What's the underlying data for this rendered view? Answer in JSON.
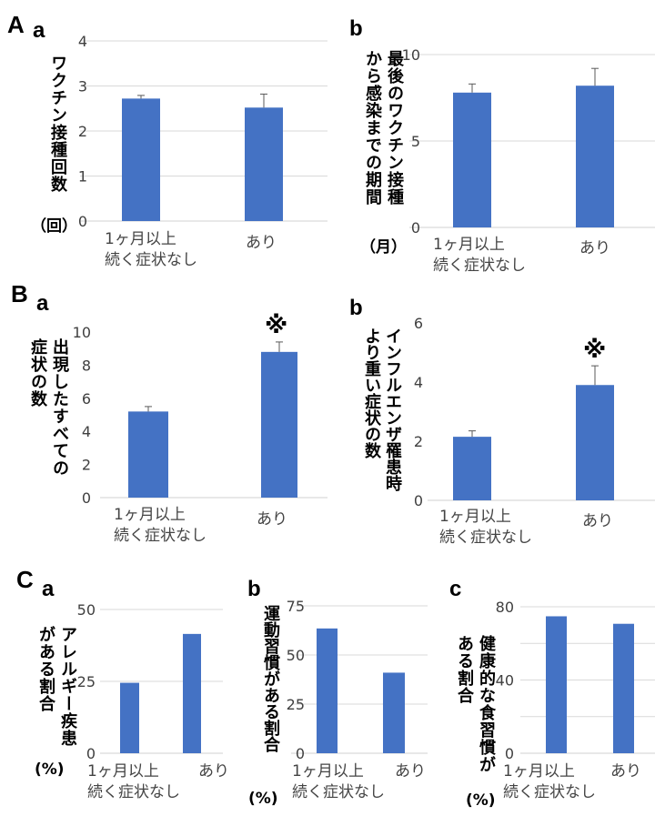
{
  "panels": {
    "A": "A",
    "B": "B",
    "C": "C",
    "a": "a",
    "b": "b",
    "c": "c"
  },
  "colors": {
    "bar": "#4472C4",
    "grid": "#D9D9D9",
    "error": "#595959"
  },
  "chart_data": [
    {
      "id": "Aa",
      "type": "bar",
      "categories": [
        "1ヶ月以上 続く症状なし",
        "あり"
      ],
      "category_lines": [
        [
          "1ヶ月以上",
          "続く症状なし"
        ],
        [
          "あり"
        ]
      ],
      "values": [
        2.72,
        2.52
      ],
      "errors": [
        0.07,
        0.3
      ],
      "ylim": [
        0,
        4
      ],
      "yticks": [
        0,
        1,
        2,
        3,
        4
      ],
      "gridlines": [
        1,
        2,
        3,
        4
      ],
      "ylabel_lines": [
        "ワクチン接種回数"
      ],
      "unit": "（回）"
    },
    {
      "id": "Ab",
      "type": "bar",
      "categories": [
        "1ヶ月以上 続く症状なし",
        "あり"
      ],
      "category_lines": [
        [
          "1ヶ月以上",
          "続く症状なし"
        ],
        [
          "あり"
        ]
      ],
      "values": [
        7.8,
        8.2
      ],
      "errors": [
        0.5,
        1.0
      ],
      "ylim": [
        0,
        10
      ],
      "yticks": [
        0,
        5,
        10
      ],
      "gridlines": [
        5,
        10
      ],
      "ylabel_lines": [
        "最後のワクチン接種",
        "から感染までの期間"
      ],
      "unit": "（月）"
    },
    {
      "id": "Ba",
      "type": "bar",
      "categories": [
        "1ヶ月以上 続く症状なし",
        "あり"
      ],
      "category_lines": [
        [
          "1ヶ月以上",
          "続く症状なし"
        ],
        [
          "あり"
        ]
      ],
      "values": [
        5.2,
        8.8
      ],
      "errors": [
        0.3,
        0.6
      ],
      "ylim": [
        0,
        10
      ],
      "yticks": [
        0,
        2,
        4,
        6,
        8,
        10
      ],
      "gridlines": [],
      "ylabel_lines": [
        "出現したすべての",
        "症状の数"
      ],
      "annotation": "※"
    },
    {
      "id": "Bb",
      "type": "bar",
      "categories": [
        "1ヶ月以上 続く症状なし",
        "あり"
      ],
      "category_lines": [
        [
          "1ヶ月以上",
          "続く症状なし"
        ],
        [
          "あり"
        ]
      ],
      "values": [
        2.15,
        3.9
      ],
      "errors": [
        0.2,
        0.65
      ],
      "ylim": [
        0,
        6
      ],
      "yticks": [
        0,
        2,
        4,
        6
      ],
      "gridlines": [],
      "ylabel_lines": [
        "インフルエンザ罹患時",
        "より重い症状の数"
      ],
      "annotation": "※"
    },
    {
      "id": "Ca",
      "type": "bar",
      "categories": [
        "1ヶ月以上 続く症状なし",
        "あり"
      ],
      "category_lines": [
        [
          "1ヶ月以上",
          "続く症状なし"
        ],
        [
          "あり"
        ]
      ],
      "values": [
        24.5,
        41.5
      ],
      "errors": [],
      "ylim": [
        0,
        50
      ],
      "yticks": [
        0,
        25,
        50
      ],
      "gridlines": [
        25,
        50
      ],
      "ylabel_lines": [
        "アレルギー疾患",
        "がある割合"
      ],
      "unit": "(%)"
    },
    {
      "id": "Cb",
      "type": "bar",
      "categories": [
        "1ヶ月以上 続く症状なし",
        "あり"
      ],
      "category_lines": [
        [
          "1ヶ月以上",
          "続く症状なし"
        ],
        [
          "あり"
        ]
      ],
      "values": [
        63.5,
        41
      ],
      "errors": [],
      "ylim": [
        0,
        75
      ],
      "yticks": [
        0,
        25,
        50,
        75
      ],
      "gridlines": [
        25,
        50,
        75
      ],
      "ylabel_lines": [
        "運動習慣がある割合"
      ],
      "unit": "(%)"
    },
    {
      "id": "Cc",
      "type": "bar",
      "categories": [
        "1ヶ月以上 続く症状なし",
        "あり"
      ],
      "category_lines": [
        [
          "1ヶ月以上",
          "続く症状なし"
        ],
        [
          "あり"
        ]
      ],
      "values": [
        74.8,
        70.7
      ],
      "errors": [],
      "ylim": [
        0,
        80
      ],
      "yticks": [
        0,
        40,
        80
      ],
      "gridlines": [
        20,
        40,
        60,
        80
      ],
      "ylabel_lines": [
        "健康的な食習慣が",
        "ある割合"
      ],
      "unit": "(%)"
    }
  ]
}
